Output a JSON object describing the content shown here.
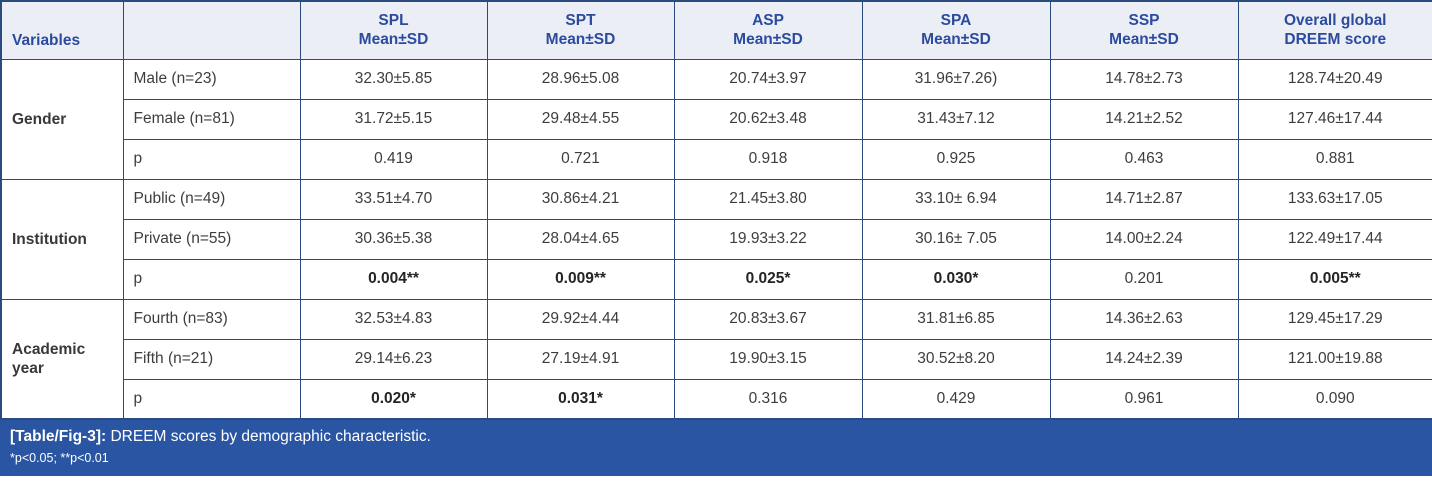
{
  "colors": {
    "banner_blue": "#2a55a2",
    "header_background": "#eceef5",
    "header_text_blue": "#2b4b9e",
    "border_navy": "#2a4a80"
  },
  "table": {
    "header": {
      "variables_label": "Variables",
      "columns": [
        {
          "line1": "SPL",
          "line2": "Mean±SD"
        },
        {
          "line1": "SPT",
          "line2": "Mean±SD"
        },
        {
          "line1": "ASP",
          "line2": "Mean±SD"
        },
        {
          "line1": "SPA",
          "line2": "Mean±SD"
        },
        {
          "line1": "SSP",
          "line2": "Mean±SD"
        },
        {
          "line1": "Overall global",
          "line2": "DREEM score"
        }
      ]
    },
    "groups": [
      {
        "name": "Gender",
        "rows": [
          {
            "label": "Male (n=23)",
            "values": [
              "32.30±5.85",
              "28.96±5.08",
              "20.74±3.97",
              "31.96±7.26)",
              "14.78±2.73",
              "128.74±20.49"
            ]
          },
          {
            "label": "Female (n=81)",
            "values": [
              "31.72±5.15",
              "29.48±4.55",
              "20.62±3.48",
              "31.43±7.12",
              "14.21±2.52",
              "127.46±17.44"
            ]
          },
          {
            "label": "p",
            "values": [
              "0.419",
              "0.721",
              "0.918",
              "0.925",
              "0.463",
              "0.881"
            ]
          }
        ]
      },
      {
        "name": "Institution",
        "rows": [
          {
            "label": "Public (n=49)",
            "values": [
              "33.51±4.70",
              "30.86±4.21",
              "21.45±3.80",
              "33.10± 6.94",
              "14.71±2.87",
              "133.63±17.05"
            ]
          },
          {
            "label": "Private (n=55)",
            "values": [
              "30.36±5.38",
              "28.04±4.65",
              "19.93±3.22",
              "30.16± 7.05",
              "14.00±2.24",
              "122.49±17.44"
            ]
          },
          {
            "label": "p",
            "values": [
              "0.004**",
              "0.009**",
              "0.025*",
              "0.030*",
              "0.201",
              "0.005**"
            ]
          }
        ]
      },
      {
        "name": "Academic year",
        "rows": [
          {
            "label": "Fourth (n=83)",
            "values": [
              "32.53±4.83",
              "29.92±4.44",
              "20.83±3.67",
              "31.81±6.85",
              "14.36±2.63",
              "129.45±17.29"
            ]
          },
          {
            "label": "Fifth (n=21)",
            "values": [
              "29.14±6.23",
              "27.19±4.91",
              "19.90±3.15",
              "30.52±8.20",
              "14.24±2.39",
              "121.00±19.88"
            ]
          },
          {
            "label": "p",
            "values": [
              "0.020*",
              "0.031*",
              "0.316",
              "0.429",
              "0.961",
              "0.090"
            ]
          }
        ]
      }
    ]
  },
  "caption": {
    "tag": "[Table/Fig-3]:",
    "text": " DREEM scores by demographic characteristic.",
    "footnote": "*p<0.05; **p<0.01"
  }
}
